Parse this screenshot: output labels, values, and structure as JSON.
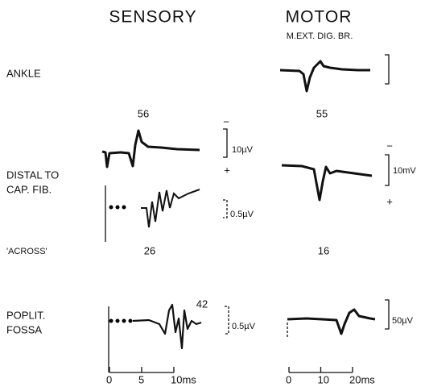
{
  "headers": {
    "sensory": "SENSORY",
    "motor": "MOTOR",
    "motor_subtitle": "M.EXT. DIG. BR."
  },
  "row_labels": {
    "ankle": "ANKLE",
    "distal_1": "DISTAL TO",
    "distal_2": "CAP. FIB.",
    "across": "'ACROSS'",
    "poplit_1": "POPLIT.",
    "poplit_2": "FOSSA"
  },
  "numbers": {
    "sensory_distal": 56,
    "motor_ankle": 55,
    "sensory_across": 26,
    "motor_across": 16,
    "sensory_poplit": 42
  },
  "scale_bars": {
    "sensory_distal": "10µV",
    "sensory_across": "0.5µV",
    "motor_distal": "10mV",
    "sensory_poplit": "0.5µV",
    "motor_poplit": "50µV"
  },
  "polarity": {
    "minus": "−",
    "plus": "+"
  },
  "sensory_time_ticks": [
    0,
    5,
    {
      "value": 10,
      "label": "10ms"
    }
  ],
  "motor_time_ticks": [
    0,
    10,
    {
      "value": 20,
      "label": "20ms"
    }
  ]
}
